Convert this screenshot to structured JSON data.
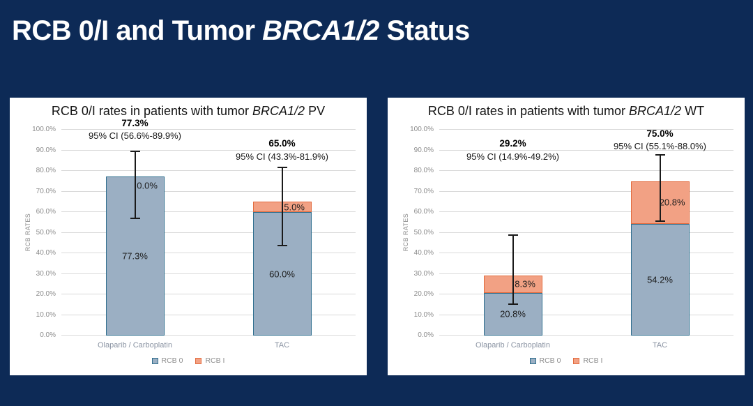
{
  "slide": {
    "title": {
      "prefix": "RCB 0/I and Tumor ",
      "italic": "BRCA1/2",
      "suffix": " Status"
    },
    "background_color": "#0d2a56"
  },
  "colors": {
    "rcb0_fill": "#9bafc3",
    "rcb0_border": "#2f6e8e",
    "rcb1_fill": "#f2a184",
    "rcb1_border": "#e26b3e",
    "gridline": "#d9d9d9",
    "tick_text": "#8c8c8c",
    "error_bar": "#1a1a1a"
  },
  "chart_data": [
    {
      "type": "bar",
      "stacked": true,
      "title": {
        "prefix": "RCB 0/I rates in patients with tumor ",
        "italic": "BRCA1/2",
        "suffix": " PV"
      },
      "ylabel": "RCB RATES",
      "ylim": [
        0,
        100
      ],
      "grid": true,
      "legend_position": "bottom",
      "yticks": [
        {
          "value": 0,
          "label": "0.0%"
        },
        {
          "value": 10,
          "label": "10.0%"
        },
        {
          "value": 20,
          "label": "20.0%"
        },
        {
          "value": 30,
          "label": "30.0%"
        },
        {
          "value": 40,
          "label": "40.0%"
        },
        {
          "value": 50,
          "label": "50.0%"
        },
        {
          "value": 60,
          "label": "60.0%"
        },
        {
          "value": 70,
          "label": "70.0%"
        },
        {
          "value": 80,
          "label": "80.0%"
        },
        {
          "value": 90,
          "label": "90.0%"
        },
        {
          "value": 100,
          "label": "100.0%"
        }
      ],
      "categories": [
        "Olaparib / Carboplatin",
        "TAC"
      ],
      "series": [
        {
          "name": "RCB 0",
          "values": [
            77.3,
            60.0
          ],
          "labels": [
            "77.3%",
            "60.0%"
          ],
          "color": "#9bafc3",
          "border": "#2f6e8e"
        },
        {
          "name": "RCB I",
          "values": [
            0.0,
            5.0
          ],
          "labels": [
            "0.0%",
            "5.0%"
          ],
          "color": "#f2a184",
          "border": "#e26b3e"
        }
      ],
      "totals": [
        {
          "value": "77.3%",
          "ci": "95% CI (56.6%-89.9%)"
        },
        {
          "value": "65.0%",
          "ci": "95% CI (43.3%-81.9%)"
        }
      ],
      "error_bars": [
        {
          "low": 56.6,
          "high": 89.9
        },
        {
          "low": 43.3,
          "high": 81.9
        }
      ],
      "annotation_bottom_pct": [
        94,
        84
      ]
    },
    {
      "type": "bar",
      "stacked": true,
      "title": {
        "prefix": "RCB 0/I rates in patients with tumor ",
        "italic": "BRCA1/2",
        "suffix": " WT"
      },
      "ylabel": "RCB RATES",
      "ylim": [
        0,
        100
      ],
      "grid": true,
      "legend_position": "bottom",
      "yticks": [
        {
          "value": 0,
          "label": "0.0%"
        },
        {
          "value": 10,
          "label": "10.0%"
        },
        {
          "value": 20,
          "label": "20.0%"
        },
        {
          "value": 30,
          "label": "30.0%"
        },
        {
          "value": 40,
          "label": "40.0%"
        },
        {
          "value": 50,
          "label": "50.0%"
        },
        {
          "value": 60,
          "label": "60.0%"
        },
        {
          "value": 70,
          "label": "70.0%"
        },
        {
          "value": 80,
          "label": "80.0%"
        },
        {
          "value": 90,
          "label": "90.0%"
        },
        {
          "value": 100,
          "label": "100.0%"
        }
      ],
      "categories": [
        "Olaparib / Carboplatin",
        "TAC"
      ],
      "series": [
        {
          "name": "RCB 0",
          "values": [
            20.8,
            54.2
          ],
          "labels": [
            "20.8%",
            "54.2%"
          ],
          "color": "#9bafc3",
          "border": "#2f6e8e"
        },
        {
          "name": "RCB I",
          "values": [
            8.3,
            20.8
          ],
          "labels": [
            "8.3%",
            "20.8%"
          ],
          "color": "#f2a184",
          "border": "#e26b3e"
        }
      ],
      "totals": [
        {
          "value": "29.2%",
          "ci": "95% CI (14.9%-49.2%)"
        },
        {
          "value": "75.0%",
          "ci": "95% CI (55.1%-88.0%)"
        }
      ],
      "error_bars": [
        {
          "low": 14.9,
          "high": 49.2
        },
        {
          "low": 55.1,
          "high": 88.0
        }
      ],
      "annotation_bottom_pct": [
        84,
        89
      ]
    }
  ]
}
